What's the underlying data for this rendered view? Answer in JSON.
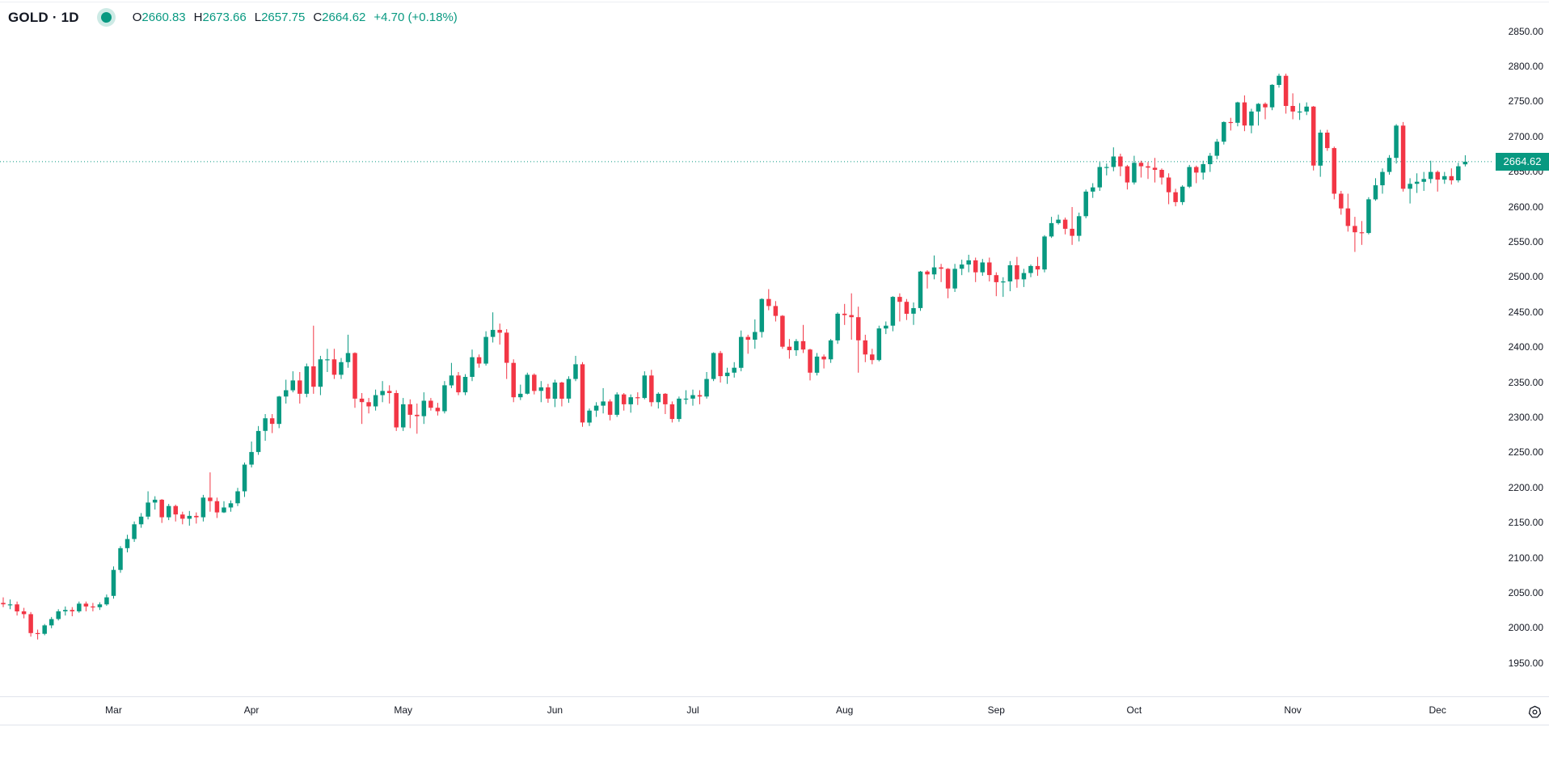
{
  "header": {
    "symbol": "GOLD · 1D",
    "ohlc": {
      "o_label": "O",
      "o": "2660.83",
      "h_label": "H",
      "h": "2673.66",
      "l_label": "L",
      "l": "2657.75",
      "c_label": "C",
      "c": "2664.62",
      "change": "+4.70 (+0.18%)"
    }
  },
  "price_badge": {
    "value": "2664.62"
  },
  "icons": {
    "status_dot": "market-status-dot",
    "gear": "timezone-settings-gear"
  },
  "colors": {
    "up": "#089981",
    "down": "#f23645",
    "text": "#131722",
    "badge_bg": "#089981",
    "badge_text": "#ffffff",
    "separator": "#e0e3eb",
    "halo": "#cdeae5"
  },
  "chart_data": {
    "type": "candlestick",
    "symbol": "GOLD",
    "interval": "1D",
    "legend_position": "top-left",
    "grid": false,
    "last": {
      "open": 2660.83,
      "high": 2673.66,
      "low": 2657.75,
      "close": 2664.62,
      "change": "+4.70",
      "change_pct": "+0.18%"
    },
    "y_axis": {
      "ticks": [
        2850,
        2800,
        2750,
        2700,
        2650,
        2600,
        2550,
        2500,
        2450,
        2400,
        2350,
        2300,
        2250,
        2200,
        2150,
        2100,
        2050,
        2000,
        1950
      ],
      "visible_range_approx": [
        1903,
        2895
      ]
    },
    "x_axis": {
      "month_ticks": [
        {
          "label": "Mar",
          "candle_index": 16
        },
        {
          "label": "Apr",
          "candle_index": 36
        },
        {
          "label": "May",
          "candle_index": 58
        },
        {
          "label": "Jun",
          "candle_index": 80
        },
        {
          "label": "Jul",
          "candle_index": 100
        },
        {
          "label": "Aug",
          "candle_index": 122
        },
        {
          "label": "Sep",
          "candle_index": 144
        },
        {
          "label": "Oct",
          "candle_index": 164
        },
        {
          "label": "Nov",
          "candle_index": 187
        },
        {
          "label": "Dec",
          "candle_index": 208
        }
      ]
    },
    "candles": [
      [
        2036,
        2044,
        2030,
        2034
      ],
      [
        2034,
        2041,
        2027,
        2034
      ],
      [
        2034,
        2038,
        2018,
        2024
      ],
      [
        2024,
        2029,
        2014,
        2020
      ],
      [
        2020,
        2023,
        1988,
        1993
      ],
      [
        1993,
        1998,
        1984,
        1992
      ],
      [
        1992,
        2006,
        1990,
        2004
      ],
      [
        2004,
        2016,
        2000,
        2013
      ],
      [
        2013,
        2027,
        2011,
        2024
      ],
      [
        2024,
        2031,
        2018,
        2026
      ],
      [
        2026,
        2030,
        2017,
        2024
      ],
      [
        2024,
        2038,
        2022,
        2035
      ],
      [
        2035,
        2038,
        2024,
        2031
      ],
      [
        2031,
        2036,
        2024,
        2030
      ],
      [
        2030,
        2037,
        2026,
        2034
      ],
      [
        2034,
        2048,
        2032,
        2044
      ],
      [
        2046,
        2088,
        2042,
        2083
      ],
      [
        2083,
        2117,
        2079,
        2114
      ],
      [
        2114,
        2133,
        2108,
        2127
      ],
      [
        2127,
        2152,
        2123,
        2148
      ],
      [
        2148,
        2164,
        2143,
        2159
      ],
      [
        2159,
        2195,
        2155,
        2179
      ],
      [
        2179,
        2188,
        2169,
        2183
      ],
      [
        2183,
        2184,
        2150,
        2158
      ],
      [
        2158,
        2177,
        2154,
        2174
      ],
      [
        2174,
        2176,
        2152,
        2162
      ],
      [
        2162,
        2166,
        2148,
        2156
      ],
      [
        2156,
        2167,
        2146,
        2160
      ],
      [
        2160,
        2165,
        2149,
        2158
      ],
      [
        2158,
        2190,
        2152,
        2186
      ],
      [
        2186,
        2222,
        2166,
        2181
      ],
      [
        2181,
        2186,
        2157,
        2165
      ],
      [
        2165,
        2181,
        2164,
        2172
      ],
      [
        2172,
        2182,
        2166,
        2178
      ],
      [
        2178,
        2200,
        2174,
        2195
      ],
      [
        2195,
        2236,
        2187,
        2233
      ],
      [
        2233,
        2266,
        2229,
        2251
      ],
      [
        2251,
        2288,
        2247,
        2281
      ],
      [
        2281,
        2305,
        2267,
        2299
      ],
      [
        2299,
        2305,
        2278,
        2291
      ],
      [
        2291,
        2331,
        2285,
        2330
      ],
      [
        2330,
        2354,
        2320,
        2339
      ],
      [
        2339,
        2366,
        2336,
        2353
      ],
      [
        2353,
        2365,
        2320,
        2334
      ],
      [
        2334,
        2377,
        2329,
        2373
      ],
      [
        2373,
        2431,
        2334,
        2344
      ],
      [
        2344,
        2388,
        2332,
        2383
      ],
      [
        2383,
        2398,
        2365,
        2383
      ],
      [
        2383,
        2398,
        2355,
        2361
      ],
      [
        2361,
        2385,
        2355,
        2379
      ],
      [
        2379,
        2418,
        2371,
        2392
      ],
      [
        2392,
        2393,
        2314,
        2327
      ],
      [
        2327,
        2335,
        2291,
        2322
      ],
      [
        2322,
        2328,
        2306,
        2316
      ],
      [
        2316,
        2340,
        2310,
        2332
      ],
      [
        2332,
        2352,
        2322,
        2338
      ],
      [
        2338,
        2346,
        2320,
        2335
      ],
      [
        2335,
        2339,
        2281,
        2286
      ],
      [
        2286,
        2328,
        2281,
        2319
      ],
      [
        2319,
        2326,
        2285,
        2304
      ],
      [
        2304,
        2320,
        2277,
        2302
      ],
      [
        2302,
        2336,
        2291,
        2324
      ],
      [
        2324,
        2328,
        2310,
        2314
      ],
      [
        2314,
        2321,
        2303,
        2309
      ],
      [
        2309,
        2352,
        2306,
        2346
      ],
      [
        2346,
        2378,
        2342,
        2360
      ],
      [
        2360,
        2365,
        2332,
        2336
      ],
      [
        2336,
        2362,
        2332,
        2358
      ],
      [
        2358,
        2397,
        2352,
        2386
      ],
      [
        2386,
        2390,
        2371,
        2377
      ],
      [
        2377,
        2423,
        2374,
        2415
      ],
      [
        2415,
        2450,
        2407,
        2425
      ],
      [
        2425,
        2434,
        2404,
        2421
      ],
      [
        2421,
        2426,
        2355,
        2378
      ],
      [
        2378,
        2383,
        2322,
        2329
      ],
      [
        2329,
        2347,
        2325,
        2334
      ],
      [
        2334,
        2364,
        2333,
        2361
      ],
      [
        2361,
        2363,
        2333,
        2338
      ],
      [
        2338,
        2352,
        2322,
        2343
      ],
      [
        2343,
        2348,
        2321,
        2327
      ],
      [
        2327,
        2354,
        2315,
        2350
      ],
      [
        2350,
        2351,
        2316,
        2327
      ],
      [
        2327,
        2359,
        2321,
        2355
      ],
      [
        2355,
        2388,
        2352,
        2376
      ],
      [
        2376,
        2379,
        2287,
        2293
      ],
      [
        2293,
        2313,
        2288,
        2310
      ],
      [
        2310,
        2322,
        2301,
        2317
      ],
      [
        2317,
        2342,
        2306,
        2323
      ],
      [
        2323,
        2326,
        2296,
        2304
      ],
      [
        2304,
        2336,
        2301,
        2333
      ],
      [
        2333,
        2335,
        2310,
        2319
      ],
      [
        2319,
        2333,
        2307,
        2329
      ],
      [
        2329,
        2336,
        2318,
        2328
      ],
      [
        2328,
        2366,
        2326,
        2360
      ],
      [
        2360,
        2368,
        2316,
        2322
      ],
      [
        2322,
        2336,
        2313,
        2334
      ],
      [
        2334,
        2335,
        2305,
        2319
      ],
      [
        2319,
        2323,
        2293,
        2298
      ],
      [
        2298,
        2330,
        2294,
        2327
      ],
      [
        2327,
        2339,
        2319,
        2327
      ],
      [
        2327,
        2340,
        2317,
        2332
      ],
      [
        2332,
        2339,
        2319,
        2330
      ],
      [
        2330,
        2365,
        2327,
        2355
      ],
      [
        2355,
        2393,
        2352,
        2392
      ],
      [
        2392,
        2395,
        2350,
        2359
      ],
      [
        2359,
        2371,
        2348,
        2364
      ],
      [
        2364,
        2379,
        2357,
        2371
      ],
      [
        2371,
        2424,
        2366,
        2415
      ],
      [
        2415,
        2418,
        2391,
        2411
      ],
      [
        2411,
        2440,
        2398,
        2422
      ],
      [
        2422,
        2470,
        2414,
        2469
      ],
      [
        2469,
        2483,
        2453,
        2459
      ],
      [
        2459,
        2466,
        2437,
        2445
      ],
      [
        2445,
        2446,
        2398,
        2401
      ],
      [
        2401,
        2412,
        2384,
        2396
      ],
      [
        2396,
        2412,
        2388,
        2409
      ],
      [
        2409,
        2432,
        2392,
        2397
      ],
      [
        2397,
        2398,
        2353,
        2364
      ],
      [
        2364,
        2392,
        2360,
        2387
      ],
      [
        2387,
        2390,
        2370,
        2383
      ],
      [
        2383,
        2412,
        2378,
        2410
      ],
      [
        2410,
        2450,
        2405,
        2448
      ],
      [
        2448,
        2462,
        2432,
        2446
      ],
      [
        2446,
        2477,
        2411,
        2443
      ],
      [
        2443,
        2458,
        2364,
        2410
      ],
      [
        2410,
        2418,
        2379,
        2390
      ],
      [
        2390,
        2398,
        2376,
        2382
      ],
      [
        2382,
        2431,
        2380,
        2427
      ],
      [
        2427,
        2437,
        2419,
        2431
      ],
      [
        2431,
        2473,
        2423,
        2472
      ],
      [
        2472,
        2477,
        2437,
        2465
      ],
      [
        2465,
        2469,
        2439,
        2448
      ],
      [
        2448,
        2464,
        2432,
        2456
      ],
      [
        2456,
        2509,
        2452,
        2508
      ],
      [
        2508,
        2510,
        2484,
        2504
      ],
      [
        2504,
        2531,
        2497,
        2514
      ],
      [
        2514,
        2519,
        2493,
        2512
      ],
      [
        2512,
        2513,
        2470,
        2484
      ],
      [
        2484,
        2519,
        2479,
        2512
      ],
      [
        2512,
        2525,
        2503,
        2518
      ],
      [
        2518,
        2532,
        2507,
        2524
      ],
      [
        2524,
        2528,
        2493,
        2507
      ],
      [
        2507,
        2526,
        2502,
        2521
      ],
      [
        2521,
        2528,
        2494,
        2503
      ],
      [
        2503,
        2507,
        2473,
        2493
      ],
      [
        2493,
        2500,
        2472,
        2494
      ],
      [
        2494,
        2523,
        2480,
        2517
      ],
      [
        2517,
        2529,
        2485,
        2497
      ],
      [
        2497,
        2512,
        2486,
        2506
      ],
      [
        2506,
        2518,
        2500,
        2516
      ],
      [
        2516,
        2529,
        2502,
        2511
      ],
      [
        2511,
        2560,
        2507,
        2558
      ],
      [
        2558,
        2586,
        2556,
        2577
      ],
      [
        2577,
        2589,
        2575,
        2582
      ],
      [
        2582,
        2585,
        2561,
        2569
      ],
      [
        2569,
        2600,
        2546,
        2559
      ],
      [
        2559,
        2592,
        2551,
        2587
      ],
      [
        2587,
        2625,
        2584,
        2622
      ],
      [
        2622,
        2634,
        2613,
        2628
      ],
      [
        2628,
        2664,
        2623,
        2657
      ],
      [
        2657,
        2662,
        2645,
        2657
      ],
      [
        2657,
        2685,
        2651,
        2672
      ],
      [
        2672,
        2676,
        2644,
        2658
      ],
      [
        2658,
        2660,
        2625,
        2635
      ],
      [
        2635,
        2673,
        2632,
        2663
      ],
      [
        2663,
        2666,
        2642,
        2658
      ],
      [
        2658,
        2664,
        2640,
        2656
      ],
      [
        2656,
        2670,
        2635,
        2653
      ],
      [
        2653,
        2655,
        2632,
        2642
      ],
      [
        2642,
        2648,
        2604,
        2621
      ],
      [
        2621,
        2626,
        2601,
        2607
      ],
      [
        2607,
        2631,
        2603,
        2629
      ],
      [
        2629,
        2660,
        2627,
        2657
      ],
      [
        2657,
        2659,
        2634,
        2649
      ],
      [
        2649,
        2666,
        2639,
        2661
      ],
      [
        2661,
        2677,
        2650,
        2673
      ],
      [
        2673,
        2697,
        2668,
        2693
      ],
      [
        2693,
        2722,
        2689,
        2721
      ],
      [
        2721,
        2727,
        2709,
        2720
      ],
      [
        2720,
        2750,
        2715,
        2749
      ],
      [
        2749,
        2759,
        2708,
        2716
      ],
      [
        2716,
        2740,
        2705,
        2736
      ],
      [
        2736,
        2748,
        2716,
        2747
      ],
      [
        2747,
        2749,
        2725,
        2742
      ],
      [
        2742,
        2775,
        2738,
        2774
      ],
      [
        2774,
        2790,
        2770,
        2787
      ],
      [
        2787,
        2790,
        2733,
        2744
      ],
      [
        2744,
        2762,
        2725,
        2736
      ],
      [
        2736,
        2748,
        2724,
        2736
      ],
      [
        2736,
        2749,
        2731,
        2743
      ],
      [
        2743,
        2744,
        2652,
        2659
      ],
      [
        2659,
        2710,
        2643,
        2706
      ],
      [
        2706,
        2710,
        2680,
        2684
      ],
      [
        2684,
        2686,
        2611,
        2619
      ],
      [
        2619,
        2623,
        2589,
        2598
      ],
      [
        2598,
        2619,
        2565,
        2573
      ],
      [
        2573,
        2586,
        2536,
        2564
      ],
      [
        2564,
        2580,
        2546,
        2563
      ],
      [
        2563,
        2614,
        2561,
        2611
      ],
      [
        2611,
        2641,
        2609,
        2631
      ],
      [
        2631,
        2655,
        2619,
        2650
      ],
      [
        2650,
        2674,
        2646,
        2670
      ],
      [
        2670,
        2718,
        2662,
        2716
      ],
      [
        2716,
        2721,
        2622,
        2626
      ],
      [
        2626,
        2641,
        2605,
        2633
      ],
      [
        2633,
        2648,
        2620,
        2636
      ],
      [
        2636,
        2650,
        2623,
        2640
      ],
      [
        2640,
        2666,
        2634,
        2650
      ],
      [
        2650,
        2652,
        2622,
        2639
      ],
      [
        2639,
        2650,
        2633,
        2644
      ],
      [
        2644,
        2655,
        2632,
        2638
      ],
      [
        2638,
        2663,
        2635,
        2658
      ],
      [
        2660.83,
        2673.66,
        2657.75,
        2664.62
      ]
    ]
  }
}
